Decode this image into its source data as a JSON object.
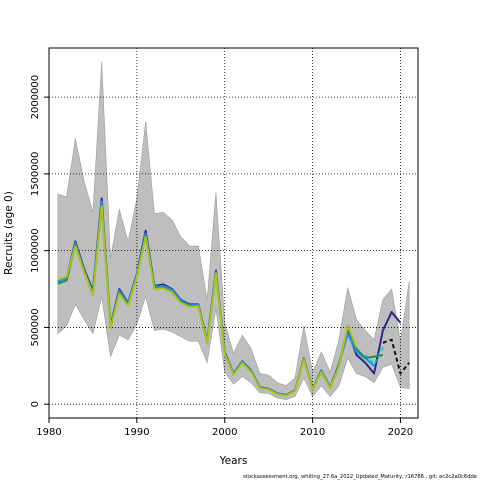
{
  "chart_data": {
    "type": "line",
    "title": "",
    "xlabel": "Years",
    "ylabel": "Recruits (age 0)",
    "xlim": [
      1980,
      2022
    ],
    "ylim": [
      -90000,
      2320000
    ],
    "x_ticks": [
      1980,
      1990,
      2000,
      2010,
      2020
    ],
    "y_ticks": [
      0,
      500000,
      1000000,
      1500000,
      2000000
    ],
    "x_tick_labels": [
      "1980",
      "1990",
      "2000",
      "2010",
      "2020"
    ],
    "y_tick_labels": [
      "0",
      "500000",
      "1000000",
      "1500000",
      "2000000"
    ],
    "grid": "dotted at ticks",
    "band": {
      "color": "#bebebe",
      "years": [
        1981,
        1982,
        1983,
        1984,
        1985,
        1986,
        1987,
        1988,
        1989,
        1990,
        1991,
        1992,
        1993,
        1994,
        1995,
        1996,
        1997,
        1998,
        1999,
        2000,
        2001,
        2002,
        2003,
        2004,
        2005,
        2006,
        2007,
        2008,
        2009,
        2010,
        2011,
        2012,
        2013,
        2014,
        2015,
        2016,
        2017,
        2018,
        2019,
        2020,
        2021
      ],
      "upper": [
        1370000,
        1350000,
        1730000,
        1450000,
        1250000,
        2230000,
        950000,
        1270000,
        1060000,
        1340000,
        1840000,
        1240000,
        1250000,
        1200000,
        1090000,
        1030000,
        1030000,
        680000,
        1380000,
        530000,
        330000,
        450000,
        360000,
        200000,
        190000,
        140000,
        120000,
        170000,
        510000,
        210000,
        340000,
        210000,
        420000,
        760000,
        550000,
        480000,
        420000,
        680000,
        750000,
        410000,
        800000
      ],
      "lower": [
        460000,
        510000,
        650000,
        550000,
        460000,
        700000,
        310000,
        450000,
        420000,
        520000,
        700000,
        480000,
        490000,
        470000,
        440000,
        410000,
        410000,
        270000,
        620000,
        210000,
        130000,
        180000,
        140000,
        75000,
        70000,
        40000,
        30000,
        50000,
        170000,
        50000,
        120000,
        50000,
        120000,
        300000,
        200000,
        180000,
        140000,
        240000,
        260000,
        110000,
        100000
      ]
    },
    "series": [
      {
        "color": "#2b2b8c",
        "x": [
          1981,
          1982,
          1983,
          1984,
          1985,
          1986,
          1987,
          1988,
          1989,
          1990,
          1991,
          1992,
          1993,
          1994,
          1995,
          1996,
          1997,
          1998,
          1999,
          2000,
          2001,
          2002,
          2003,
          2004,
          2005,
          2006,
          2007,
          2008,
          2009,
          2010,
          2011,
          2012,
          2013,
          2014,
          2015,
          2016,
          2017,
          2018,
          2019,
          2020
        ],
        "y": [
          800000,
          820000,
          1060000,
          880000,
          740000,
          1340000,
          510000,
          750000,
          660000,
          850000,
          1130000,
          770000,
          780000,
          750000,
          680000,
          650000,
          650000,
          410000,
          870000,
          340000,
          200000,
          280000,
          220000,
          110000,
          100000,
          70000,
          60000,
          90000,
          300000,
          100000,
          220000,
          110000,
          260000,
          480000,
          320000,
          270000,
          200000,
          480000,
          600000,
          530000
        ]
      },
      {
        "color": "#1e90ff",
        "x": [
          1981,
          1982,
          1983,
          1984,
          1985,
          1986,
          1987,
          1988,
          1989,
          1990,
          1991,
          1992,
          1993,
          1994,
          1995,
          1996,
          1997,
          1998,
          1999,
          2000,
          2001,
          2002,
          2003,
          2004,
          2005,
          2006,
          2007,
          2008,
          2009,
          2010,
          2011,
          2012,
          2013,
          2014,
          2015,
          2016,
          2017
        ],
        "y": [
          795000,
          815000,
          1050000,
          870000,
          730000,
          1320000,
          505000,
          740000,
          655000,
          845000,
          1110000,
          765000,
          770000,
          745000,
          675000,
          645000,
          645000,
          405000,
          860000,
          335000,
          198000,
          278000,
          218000,
          109000,
          99000,
          69000,
          59000,
          89000,
          298000,
          99000,
          218000,
          108000,
          255000,
          460000,
          340000,
          300000,
          250000
        ]
      },
      {
        "color": "#00ced1",
        "x": [
          2016,
          2017,
          2018
        ],
        "y": [
          320000,
          260000,
          370000
        ],
        "dashed": true
      },
      {
        "color": "#2e8b57",
        "x": [
          1981,
          1982,
          1983,
          1984,
          1985,
          1986,
          1987,
          1988,
          1989,
          1990,
          1991,
          1992,
          1993,
          1994,
          1995,
          1996,
          1997,
          1998,
          1999,
          2000,
          2001,
          2002,
          2003,
          2004,
          2005,
          2006,
          2007,
          2008,
          2009,
          2010,
          2011,
          2012,
          2013,
          2014,
          2015,
          2016,
          2017,
          2018
        ],
        "y": [
          785000,
          805000,
          1040000,
          865000,
          720000,
          1300000,
          500000,
          730000,
          645000,
          835000,
          1100000,
          755000,
          760000,
          735000,
          665000,
          640000,
          640000,
          400000,
          855000,
          330000,
          195000,
          272000,
          214000,
          107000,
          97000,
          67000,
          57000,
          87000,
          295000,
          97000,
          214000,
          106000,
          250000,
          500000,
          360000,
          300000,
          310000,
          320000
        ]
      },
      {
        "color": "#a9c21c",
        "x": [
          1981,
          1982,
          1983,
          1984,
          1985,
          1986,
          1987,
          1988,
          1989,
          1990,
          1991,
          1992,
          1993,
          1994,
          1995,
          1996,
          1997,
          1998,
          1999,
          2000,
          2001,
          2002,
          2003,
          2004,
          2005,
          2006,
          2007,
          2008,
          2009,
          2010,
          2011,
          2012,
          2013,
          2014,
          2015
        ],
        "y": [
          810000,
          830000,
          1030000,
          860000,
          710000,
          1290000,
          495000,
          720000,
          640000,
          830000,
          1090000,
          750000,
          755000,
          730000,
          660000,
          635000,
          638000,
          395000,
          850000,
          325000,
          192000,
          268000,
          210000,
          105000,
          95000,
          65000,
          55000,
          85000,
          292000,
          95000,
          210000,
          104000,
          245000,
          510000,
          370000
        ]
      },
      {
        "color": "#111111",
        "x": [
          2018,
          2019,
          2020,
          2021
        ],
        "y": [
          400000,
          420000,
          200000,
          270000
        ],
        "dashed": true
      }
    ]
  },
  "footer": "stockassessment.org, whiting_27.6a_2022_Updated_Maturity, r16786 , git: ec2c2a0c6dde"
}
